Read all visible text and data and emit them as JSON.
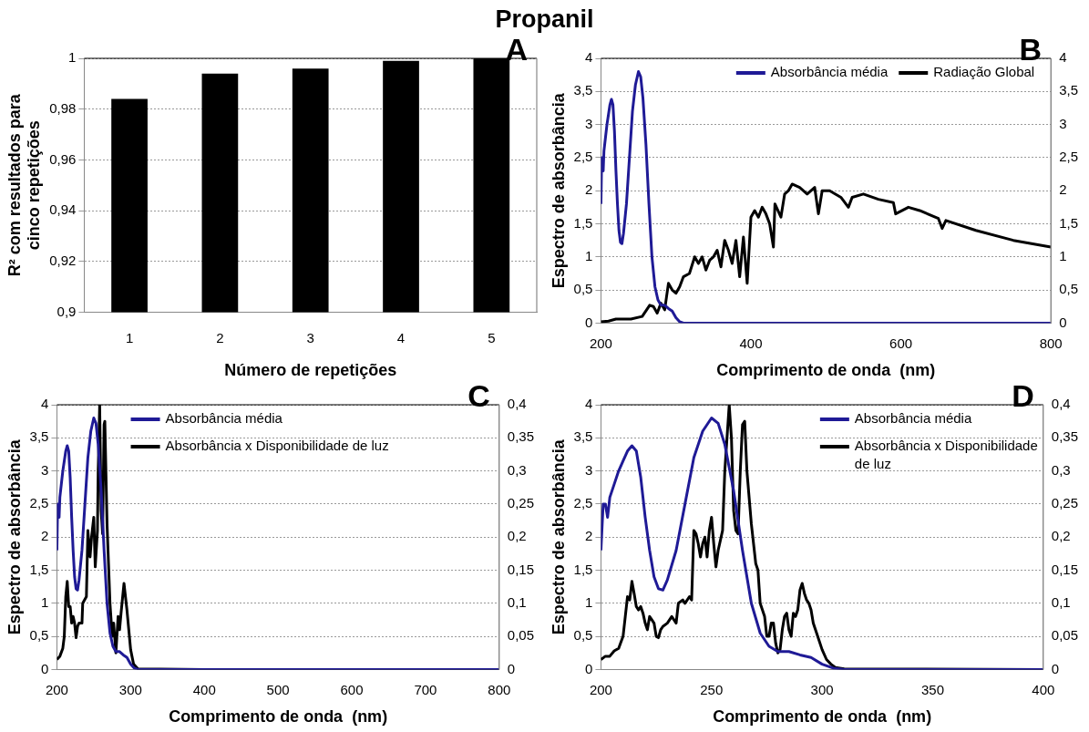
{
  "chart_data": [
    {
      "type": "bar",
      "title": "Propanil",
      "annotations": [
        "A"
      ],
      "xlabel": "Número de repetições",
      "ylabel": "R² com resultados para cinco repetições",
      "categories": [
        "1",
        "2",
        "3",
        "4",
        "5"
      ],
      "values": [
        0.984,
        0.994,
        0.996,
        0.999,
        1.0
      ],
      "color": "#000000",
      "ylim": [
        0.9,
        1
      ],
      "yticks": [
        {
          "value": 0.9,
          "label": "0,9"
        },
        {
          "value": 0.92,
          "label": "0,92"
        },
        {
          "value": 0.94,
          "label": "0,94"
        },
        {
          "value": 0.96,
          "label": "0,96"
        },
        {
          "value": 0.98,
          "label": "0,98"
        },
        1
      ],
      "grid": "y",
      "legend": false
    },
    {
      "type": "line",
      "annotations": [
        "B"
      ],
      "xlabel": "Comprimento de onda  (nm)",
      "ylabel": "Espectro de absorbância",
      "xlim": [
        200,
        800
      ],
      "xticks": [
        200,
        400,
        600,
        800
      ],
      "ylim": [
        0,
        4
      ],
      "yticks": [
        0,
        {
          "value": 0.5,
          "label": "0,5"
        },
        1,
        {
          "value": 1.5,
          "label": "1,5"
        },
        2,
        {
          "value": 2.5,
          "label": "2,5"
        },
        3,
        {
          "value": 3.5,
          "label": "3,5"
        },
        4
      ],
      "y2lim": [
        0,
        4
      ],
      "y2ticks": [
        0,
        {
          "value": 0.5,
          "label": "0,5"
        },
        1,
        {
          "value": 1.5,
          "label": "1,5"
        },
        2,
        {
          "value": 2.5,
          "label": "2,5"
        },
        3,
        {
          "value": 3.5,
          "label": "3,5"
        },
        4
      ],
      "grid": "y",
      "legend": "top right",
      "marker": "none",
      "line_style": "solid",
      "series": [
        {
          "name": "Absorbância média",
          "color": "#1f1a96",
          "x": [
            200,
            201,
            202,
            203,
            204,
            206,
            208,
            210,
            212,
            214,
            216,
            218,
            220,
            222,
            224,
            226,
            228,
            230,
            234,
            238,
            242,
            246,
            250,
            253,
            256,
            260,
            264,
            268,
            272,
            276,
            280,
            285,
            290,
            295,
            300,
            305,
            310,
            400,
            600,
            800
          ],
          "values": [
            1.8,
            2.5,
            2.5,
            2.3,
            2.6,
            2.8,
            3.0,
            3.15,
            3.3,
            3.38,
            3.3,
            2.9,
            2.3,
            1.8,
            1.4,
            1.22,
            1.2,
            1.35,
            1.8,
            2.5,
            3.2,
            3.6,
            3.8,
            3.72,
            3.4,
            2.7,
            1.8,
            1.0,
            0.55,
            0.35,
            0.27,
            0.27,
            0.22,
            0.18,
            0.08,
            0.02,
            0,
            0,
            0,
            0
          ]
        },
        {
          "name": "Radiação Global",
          "color": "#000000",
          "axis": "y2",
          "x": [
            200,
            210,
            220,
            240,
            255,
            265,
            270,
            275,
            280,
            285,
            290,
            295,
            300,
            305,
            310,
            318,
            325,
            330,
            335,
            340,
            345,
            350,
            355,
            360,
            365,
            370,
            375,
            380,
            385,
            390,
            395,
            398,
            400,
            405,
            410,
            415,
            420,
            425,
            430,
            432,
            440,
            445,
            450,
            455,
            465,
            475,
            485,
            490,
            495,
            505,
            520,
            530,
            535,
            550,
            570,
            590,
            593,
            610,
            625,
            650,
            655,
            660,
            700,
            750,
            800
          ],
          "values": [
            0.02,
            0.03,
            0.06,
            0.06,
            0.1,
            0.27,
            0.25,
            0.15,
            0.3,
            0.2,
            0.6,
            0.5,
            0.45,
            0.55,
            0.7,
            0.75,
            1.0,
            0.9,
            1.0,
            0.8,
            0.95,
            1.0,
            1.1,
            0.85,
            1.25,
            1.1,
            0.9,
            1.25,
            0.7,
            1.3,
            0.6,
            1.2,
            1.6,
            1.7,
            1.6,
            1.75,
            1.65,
            1.5,
            1.15,
            1.8,
            1.6,
            1.95,
            2.0,
            2.1,
            2.05,
            1.95,
            2.05,
            1.65,
            2.0,
            2.0,
            1.9,
            1.75,
            1.9,
            1.95,
            1.87,
            1.82,
            1.65,
            1.75,
            1.7,
            1.58,
            1.43,
            1.55,
            1.4,
            1.25,
            1.15
          ]
        }
      ]
    },
    {
      "type": "line",
      "annotations": [
        "C"
      ],
      "xlabel": "Comprimento de onda  (nm)",
      "ylabel": "Espectro de absorbância",
      "xlim": [
        200,
        800
      ],
      "xticks": [
        200,
        300,
        400,
        500,
        600,
        700,
        800
      ],
      "ylim": [
        0,
        4
      ],
      "yticks": [
        0,
        {
          "value": 0.5,
          "label": "0,5"
        },
        1,
        {
          "value": 1.5,
          "label": "1,5"
        },
        2,
        {
          "value": 2.5,
          "label": "2,5"
        },
        3,
        {
          "value": 3.5,
          "label": "3,5"
        },
        4
      ],
      "y2lim": [
        0,
        0.4
      ],
      "y2ticks": [
        0,
        {
          "value": 0.05,
          "label": "0,05"
        },
        {
          "value": 0.1,
          "label": "0,1"
        },
        {
          "value": 0.15,
          "label": "0,15"
        },
        {
          "value": 0.2,
          "label": "0,2"
        },
        {
          "value": 0.25,
          "label": "0,25"
        },
        {
          "value": 0.3,
          "label": "0,3"
        },
        {
          "value": 0.35,
          "label": "0,35"
        },
        {
          "value": 0.4,
          "label": "0,4"
        }
      ],
      "grid": "y",
      "legend": "top",
      "marker": "none",
      "line_style": "solid",
      "series": [
        {
          "name": "Absorbância média",
          "color": "#1f1a96",
          "x": [
            200,
            201,
            202,
            203,
            204,
            206,
            208,
            210,
            212,
            214,
            216,
            218,
            220,
            222,
            224,
            226,
            228,
            230,
            234,
            238,
            242,
            246,
            250,
            253,
            256,
            260,
            264,
            268,
            272,
            276,
            280,
            285,
            290,
            295,
            300,
            305,
            310,
            400,
            600,
            800
          ],
          "values": [
            1.8,
            2.5,
            2.5,
            2.3,
            2.6,
            2.8,
            3.0,
            3.15,
            3.3,
            3.38,
            3.3,
            2.9,
            2.3,
            1.8,
            1.4,
            1.22,
            1.2,
            1.35,
            1.8,
            2.5,
            3.2,
            3.6,
            3.8,
            3.72,
            3.4,
            2.7,
            1.8,
            1.0,
            0.55,
            0.35,
            0.27,
            0.27,
            0.22,
            0.18,
            0.08,
            0.02,
            0,
            0,
            0,
            0
          ]
        },
        {
          "name": "Absorbância x Disponibilidade de luz",
          "color": "#000000",
          "axis": "y2",
          "x": [
            200,
            204,
            208,
            210,
            212,
            214,
            216,
            218,
            220,
            222,
            224,
            226,
            228,
            230,
            234,
            235,
            240,
            242,
            245,
            247,
            250,
            252,
            255,
            256,
            258,
            260,
            262,
            264,
            265,
            268,
            270,
            272,
            275,
            277,
            280,
            283,
            285,
            287,
            291,
            295,
            300,
            304,
            310,
            400,
            600,
            800
          ],
          "values": [
            0.015,
            0.02,
            0.032,
            0.05,
            0.11,
            0.133,
            0.095,
            0.095,
            0.07,
            0.08,
            0.07,
            0.048,
            0.065,
            0.07,
            0.07,
            0.1,
            0.11,
            0.21,
            0.17,
            0.2,
            0.23,
            0.155,
            0.21,
            0.3,
            0.4,
            0.24,
            0.205,
            0.37,
            0.375,
            0.22,
            0.16,
            0.1,
            0.05,
            0.07,
            0.025,
            0.08,
            0.06,
            0.085,
            0.13,
            0.09,
            0.03,
            0.008,
            0.001,
            0,
            0,
            0
          ]
        }
      ]
    },
    {
      "type": "line",
      "annotations": [
        "D"
      ],
      "xlabel": "Comprimento de onda  (nm)",
      "ylabel": "Espectro de absorbância",
      "xlim": [
        200,
        400
      ],
      "xticks": [
        200,
        250,
        300,
        350,
        400
      ],
      "ylim": [
        0,
        4
      ],
      "yticks": [
        0,
        {
          "value": 0.5,
          "label": "0,5"
        },
        1,
        {
          "value": 1.5,
          "label": "1,5"
        },
        2,
        {
          "value": 2.5,
          "label": "2,5"
        },
        3,
        {
          "value": 3.5,
          "label": "3,5"
        },
        4
      ],
      "y2lim": [
        0,
        0.4
      ],
      "y2ticks": [
        0,
        {
          "value": 0.05,
          "label": "0,05"
        },
        {
          "value": 0.1,
          "label": "0,1"
        },
        {
          "value": 0.15,
          "label": "0,15"
        },
        {
          "value": 0.2,
          "label": "0,2"
        },
        {
          "value": 0.25,
          "label": "0,25"
        },
        {
          "value": 0.3,
          "label": "0,3"
        },
        {
          "value": 0.35,
          "label": "0,35"
        },
        {
          "value": 0.4,
          "label": "0,4"
        }
      ],
      "grid": "y",
      "legend": "top right",
      "marker": "none",
      "line_style": "solid",
      "series": [
        {
          "name": "Absorbância média",
          "color": "#1f1a96",
          "x": [
            200,
            201,
            202,
            203,
            204,
            206,
            208,
            210,
            212,
            214,
            216,
            218,
            220,
            222,
            224,
            226,
            228,
            230,
            234,
            238,
            242,
            246,
            250,
            253,
            256,
            260,
            264,
            268,
            272,
            276,
            280,
            285,
            290,
            295,
            300,
            305,
            310,
            400
          ],
          "values": [
            1.8,
            2.5,
            2.5,
            2.3,
            2.6,
            2.8,
            3.0,
            3.15,
            3.3,
            3.38,
            3.3,
            2.9,
            2.3,
            1.8,
            1.4,
            1.22,
            1.2,
            1.35,
            1.8,
            2.5,
            3.2,
            3.6,
            3.8,
            3.72,
            3.4,
            2.7,
            1.8,
            1.0,
            0.55,
            0.35,
            0.27,
            0.27,
            0.22,
            0.18,
            0.08,
            0.02,
            0,
            0
          ]
        },
        {
          "name": "Absorbância x Disponibilidade de luz",
          "color": "#000000",
          "axis": "y2",
          "x": [
            200,
            202,
            204,
            206,
            208,
            210,
            211,
            212,
            213,
            214,
            215,
            216,
            217,
            218,
            219,
            220,
            221,
            222,
            223,
            224,
            225,
            226,
            227,
            228,
            230,
            232,
            233,
            234,
            235,
            237,
            238,
            240,
            241,
            242,
            243,
            244,
            245,
            246,
            247,
            248,
            249,
            250,
            251,
            252,
            253,
            255,
            256,
            257,
            258,
            259,
            260,
            261,
            262,
            263,
            264,
            265,
            266,
            268,
            270,
            271,
            272,
            274,
            275,
            276,
            277,
            278,
            279,
            280,
            281,
            282,
            283,
            284,
            285,
            286,
            287,
            288,
            289,
            290,
            291,
            292,
            293,
            294,
            295,
            296,
            298,
            300,
            302,
            304,
            306,
            310,
            400
          ],
          "values": [
            0.015,
            0.02,
            0.02,
            0.028,
            0.032,
            0.05,
            0.08,
            0.11,
            0.105,
            0.133,
            0.115,
            0.095,
            0.09,
            0.095,
            0.085,
            0.07,
            0.06,
            0.08,
            0.075,
            0.07,
            0.05,
            0.048,
            0.06,
            0.065,
            0.07,
            0.08,
            0.075,
            0.07,
            0.1,
            0.105,
            0.1,
            0.11,
            0.105,
            0.21,
            0.205,
            0.19,
            0.17,
            0.19,
            0.2,
            0.17,
            0.21,
            0.23,
            0.19,
            0.155,
            0.18,
            0.21,
            0.3,
            0.35,
            0.4,
            0.35,
            0.24,
            0.21,
            0.205,
            0.3,
            0.37,
            0.375,
            0.3,
            0.22,
            0.16,
            0.15,
            0.1,
            0.08,
            0.05,
            0.05,
            0.07,
            0.07,
            0.04,
            0.025,
            0.03,
            0.06,
            0.08,
            0.085,
            0.06,
            0.05,
            0.085,
            0.08,
            0.09,
            0.12,
            0.13,
            0.115,
            0.105,
            0.1,
            0.09,
            0.07,
            0.05,
            0.03,
            0.015,
            0.008,
            0.003,
            0.001,
            0
          ]
        }
      ]
    }
  ]
}
